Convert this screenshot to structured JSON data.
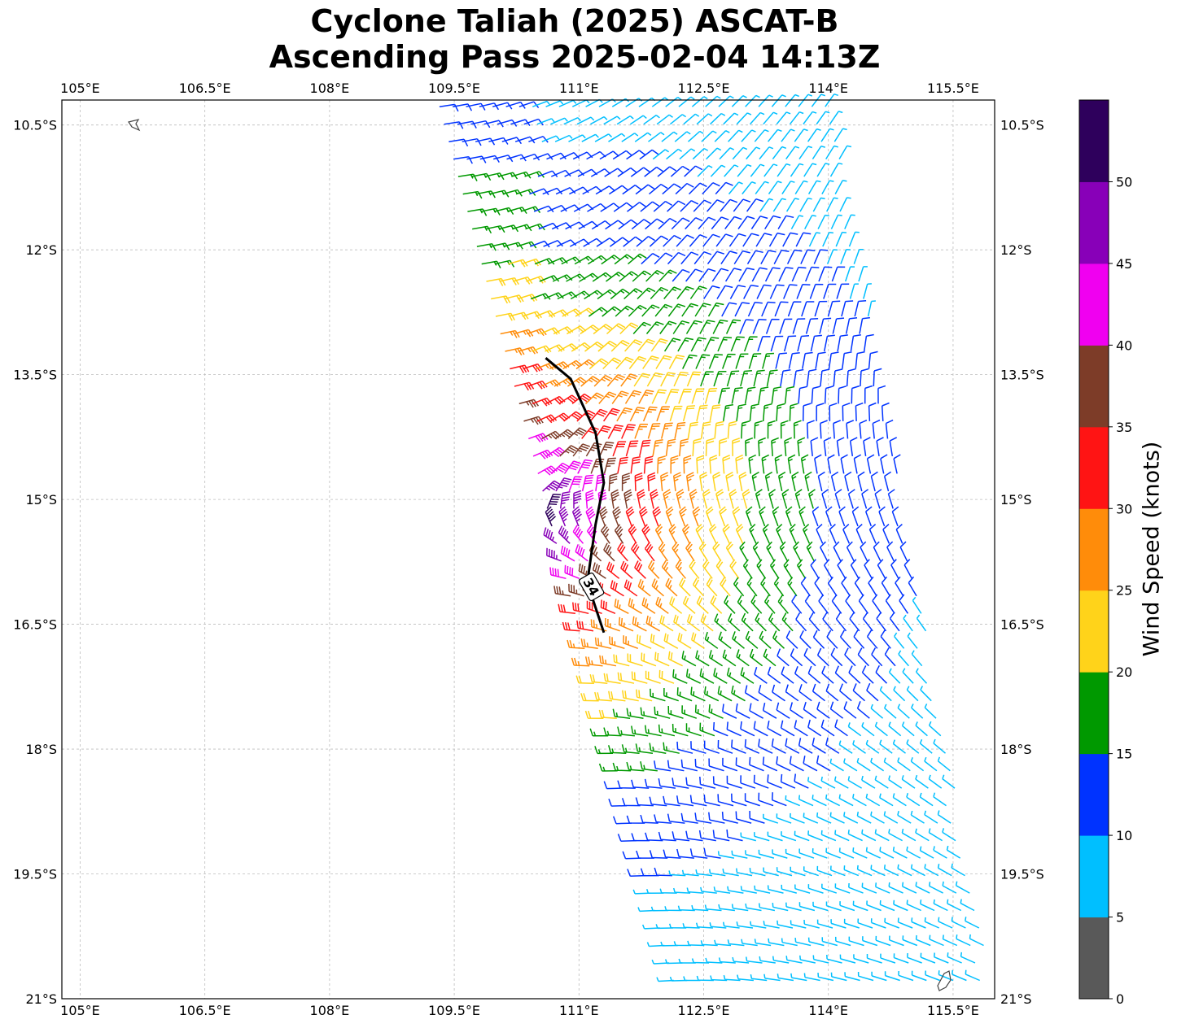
{
  "title": {
    "line1": "Cyclone Taliah (2025) ASCAT-B",
    "line2": "Ascending Pass 2025-02-04 14:13Z"
  },
  "map": {
    "lon_range": [
      104.78,
      116.0
    ],
    "lat_range": [
      -21.0,
      -10.2
    ],
    "lon_ticks": [
      105.0,
      106.5,
      108.0,
      109.5,
      111.0,
      112.5,
      114.0,
      115.5
    ],
    "lon_tick_labels": [
      "105°E",
      "106.5°E",
      "108°E",
      "109.5°E",
      "111°E",
      "112.5°E",
      "114°E",
      "115.5°E"
    ],
    "lat_ticks": [
      -10.5,
      -12.0,
      -13.5,
      -15.0,
      -16.5,
      -18.0,
      -19.5,
      -21.0
    ],
    "lat_tick_labels": [
      "10.5°S",
      "12°S",
      "13.5°S",
      "15°S",
      "16.5°S",
      "18°S",
      "19.5°S",
      "21°S"
    ],
    "gridlines": true,
    "contour_label": "34",
    "contour_color": "#000000"
  },
  "colorbar": {
    "label": "Wind Speed (knots)",
    "ticks": [
      "0",
      "5",
      "10",
      "15",
      "20",
      "25",
      "30",
      "35",
      "40",
      "45",
      "50"
    ],
    "colors": [
      "#595959",
      "#00bfff",
      "#0033ff",
      "#009900",
      "#ffd31a",
      "#ff8c0a",
      "#ff1414",
      "#7d3c28",
      "#f000f0",
      "#8800b8",
      "#2e005c"
    ]
  },
  "chart_data": {
    "type": "wind-barbs",
    "units": "knots",
    "center_approx": {
      "lon": 110.4,
      "lat": -15.3
    },
    "swath_edges": [
      {
        "lat": -10.2,
        "lon_west": 109.3,
        "lon_east": 114.0
      },
      {
        "lat": -21.0,
        "lon_west": 112.2,
        "lon_east": 116.0
      }
    ],
    "isotach_34kt": [
      [
        110.6,
        -13.3
      ],
      [
        110.9,
        -13.55
      ],
      [
        111.2,
        -14.2
      ],
      [
        111.3,
        -14.8
      ],
      [
        111.2,
        -15.3
      ],
      [
        111.1,
        -16.0
      ],
      [
        111.3,
        -16.6
      ]
    ]
  }
}
